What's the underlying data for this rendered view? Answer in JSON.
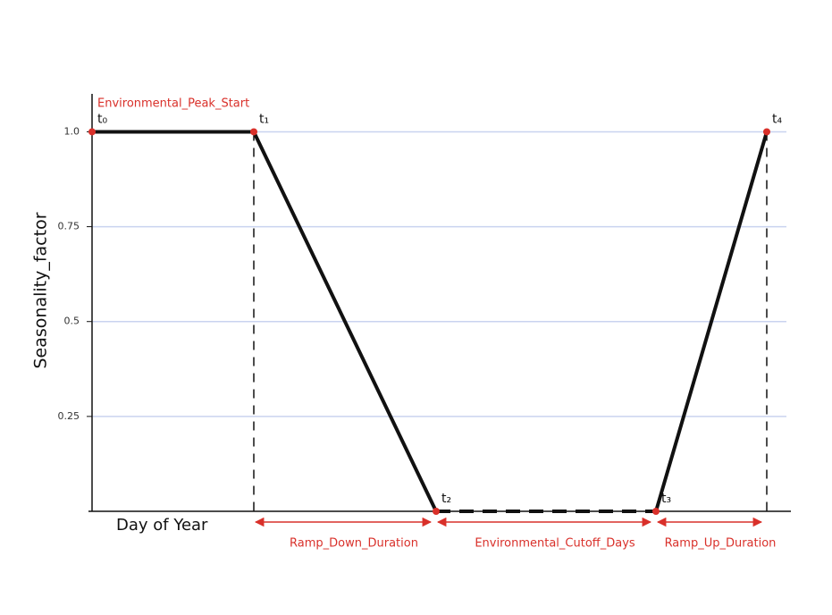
{
  "chart_data": {
    "type": "line",
    "y_label": "Seasonality_factor",
    "x_label": "Day of Year",
    "categories": [
      "t₀",
      "t₁",
      "t₂",
      "t₃",
      "t₄"
    ],
    "values": [
      1,
      1,
      0,
      0,
      1
    ],
    "color": "#111111",
    "point_color": "#d9302a",
    "ylim": [
      0,
      1.1
    ],
    "yticks": [
      0.25,
      0.5,
      0.75,
      {
        "value": 1,
        "label": "1.0"
      }
    ],
    "grid": true,
    "annotations": [
      "Environmental_Peak_Start",
      "Ramp_Down_Duration",
      "Environmental_Cutoff_Days",
      "Ramp_Up_Duration"
    ]
  }
}
